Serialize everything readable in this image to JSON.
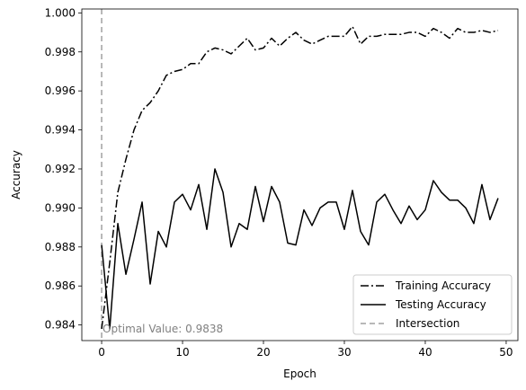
{
  "chart_data": {
    "type": "line",
    "xlabel": "Epoch",
    "ylabel": "Accuracy",
    "xlim": [
      -2.45,
      51.45
    ],
    "ylim": [
      0.9832,
      1.0002
    ],
    "xticks": [
      0,
      10,
      20,
      30,
      40,
      50
    ],
    "xtick_labels": [
      "0",
      "10",
      "20",
      "30",
      "40",
      "50"
    ],
    "yticks": [
      0.984,
      0.986,
      0.988,
      0.99,
      0.992,
      0.994,
      0.996,
      0.998,
      1.0
    ],
    "ytick_labels": [
      "0.984",
      "0.986",
      "0.988",
      "0.990",
      "0.992",
      "0.994",
      "0.996",
      "0.998",
      "1.000"
    ],
    "grid": false,
    "legend_position": "lower-right",
    "x": [
      0,
      1,
      2,
      3,
      4,
      5,
      6,
      7,
      8,
      9,
      10,
      11,
      12,
      13,
      14,
      15,
      16,
      17,
      18,
      19,
      20,
      21,
      22,
      23,
      24,
      25,
      26,
      27,
      28,
      29,
      30,
      31,
      32,
      33,
      34,
      35,
      36,
      37,
      38,
      39,
      40,
      41,
      42,
      43,
      44,
      45,
      46,
      47,
      48,
      49
    ],
    "series": [
      {
        "name": "Training Accuracy",
        "style": "dashdot",
        "color": "#000000",
        "values": [
          0.9838,
          0.9872,
          0.9908,
          0.9925,
          0.994,
          0.995,
          0.9954,
          0.996,
          0.9968,
          0.997,
          0.9971,
          0.9974,
          0.9974,
          0.998,
          0.9982,
          0.9981,
          0.9979,
          0.9983,
          0.9987,
          0.9981,
          0.9982,
          0.9987,
          0.9983,
          0.9987,
          0.999,
          0.9986,
          0.9984,
          0.9986,
          0.9988,
          0.9988,
          0.9988,
          0.9993,
          0.9984,
          0.9988,
          0.9988,
          0.9989,
          0.9989,
          0.9989,
          0.999,
          0.999,
          0.9988,
          0.9992,
          0.999,
          0.9987,
          0.9992,
          0.999,
          0.999,
          0.9991,
          0.999,
          0.9991
        ]
      },
      {
        "name": "Testing Accuracy",
        "style": "solid",
        "color": "#000000",
        "values": [
          0.9881,
          0.9838,
          0.9892,
          0.9866,
          0.9884,
          0.9903,
          0.9861,
          0.9888,
          0.988,
          0.9903,
          0.9907,
          0.9899,
          0.9912,
          0.9889,
          0.992,
          0.9908,
          0.988,
          0.9892,
          0.9889,
          0.9911,
          0.9893,
          0.9911,
          0.9903,
          0.9882,
          0.9881,
          0.9899,
          0.9891,
          0.99,
          0.9903,
          0.9903,
          0.9889,
          0.9909,
          0.9888,
          0.9881,
          0.9903,
          0.9907,
          0.9899,
          0.9892,
          0.9901,
          0.9894,
          0.9899,
          0.9914,
          0.9908,
          0.9904,
          0.9904,
          0.99,
          0.9892,
          0.9912,
          0.9894,
          0.9905
        ]
      },
      {
        "name": "Intersection",
        "style": "dashed",
        "color": "#a0a0a0",
        "x_value": 0
      }
    ],
    "annotation": {
      "text": "Optimal Value: 0.9838",
      "x": 0,
      "y": 0.9838,
      "color": "#808080"
    }
  }
}
